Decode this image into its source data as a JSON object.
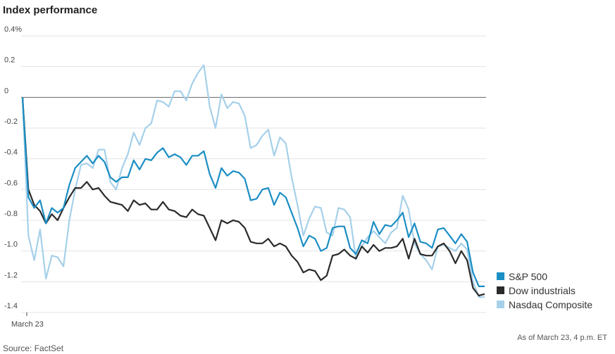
{
  "chart_data": {
    "type": "line",
    "title": "Index performance",
    "note": "As of March 23, 4 p.m. ET",
    "source": "Source: FactSet",
    "categories": [
      "March 23",
      null,
      null,
      null,
      null,
      null,
      null,
      null,
      null,
      null,
      null,
      null,
      null,
      null,
      null,
      null,
      null,
      null,
      null,
      null,
      null,
      null,
      null,
      null,
      null,
      null,
      null,
      null,
      null,
      null,
      null,
      null,
      null,
      null,
      null,
      null,
      null,
      null,
      null,
      null,
      null,
      null,
      null,
      null,
      null,
      null,
      null,
      null,
      null,
      null,
      null,
      null,
      null,
      null,
      null,
      null,
      null,
      null,
      null,
      null,
      null,
      null,
      null,
      null,
      null,
      null,
      null,
      null,
      null,
      null,
      null,
      null,
      null,
      null,
      null,
      null,
      null,
      null,
      null,
      null
    ],
    "ylim": [
      -1.4,
      0.4
    ],
    "yticks": [
      {
        "value": 0.4,
        "label": "0.4%"
      },
      0.2,
      0,
      -0.2,
      -0.4,
      -0.6,
      -0.8,
      {
        "value": -1,
        "label": "-1.0"
      },
      -1.2,
      -1.4
    ],
    "grid": true,
    "legend": "lower right",
    "series": [
      {
        "name": "S&P 500",
        "color": "#1b8ec4",
        "values": [
          0,
          -0.65,
          -0.72,
          -0.67,
          -0.82,
          -0.72,
          -0.75,
          -0.72,
          -0.57,
          -0.46,
          -0.42,
          -0.38,
          -0.43,
          -0.38,
          -0.42,
          -0.52,
          -0.55,
          -0.52,
          -0.52,
          -0.41,
          -0.47,
          -0.4,
          -0.41,
          -0.36,
          -0.33,
          -0.39,
          -0.37,
          -0.39,
          -0.44,
          -0.38,
          -0.38,
          -0.35,
          -0.5,
          -0.59,
          -0.46,
          -0.51,
          -0.48,
          -0.49,
          -0.53,
          -0.67,
          -0.66,
          -0.6,
          -0.59,
          -0.7,
          -0.62,
          -0.65,
          -0.75,
          -0.85,
          -0.97,
          -0.9,
          -0.92,
          -1.0,
          -0.98,
          -0.85,
          -0.84,
          -0.84,
          -0.98,
          -1.02,
          -0.93,
          -0.95,
          -0.81,
          -0.89,
          -0.83,
          -0.84,
          -0.8,
          -0.75,
          -0.91,
          -0.82,
          -0.94,
          -0.95,
          -0.98,
          -0.86,
          -0.85,
          -0.9,
          -0.95,
          -0.89,
          -0.94,
          -1.14,
          -1.23,
          -1.23
        ]
      },
      {
        "name": "Dow industrials",
        "color": "#2b2b2b",
        "values": [
          0,
          -0.6,
          -0.7,
          -0.74,
          -0.82,
          -0.76,
          -0.8,
          -0.72,
          -0.65,
          -0.59,
          -0.59,
          -0.55,
          -0.6,
          -0.59,
          -0.64,
          -0.68,
          -0.69,
          -0.7,
          -0.74,
          -0.67,
          -0.7,
          -0.69,
          -0.73,
          -0.73,
          -0.68,
          -0.73,
          -0.74,
          -0.77,
          -0.78,
          -0.73,
          -0.76,
          -0.77,
          -0.85,
          -0.93,
          -0.8,
          -0.82,
          -0.8,
          -0.81,
          -0.85,
          -0.94,
          -0.95,
          -0.95,
          -0.92,
          -0.97,
          -0.95,
          -0.97,
          -1.03,
          -1.07,
          -1.14,
          -1.12,
          -1.13,
          -1.19,
          -1.16,
          -1.03,
          -1.02,
          -0.99,
          -1.03,
          -1.05,
          -0.97,
          -1.01,
          -0.96,
          -1.0,
          -0.98,
          -0.98,
          -0.97,
          -0.92,
          -1.05,
          -0.92,
          -1.02,
          -1.03,
          -1.03,
          -0.97,
          -0.95,
          -1.0,
          -1.08,
          -1.0,
          -1.06,
          -1.24,
          -1.29,
          -1.28
        ]
      },
      {
        "name": "Nasdaq Composite",
        "color": "#a6d0ea",
        "values": [
          0,
          -0.9,
          -1.06,
          -0.86,
          -1.18,
          -1.03,
          -1.04,
          -1.1,
          -0.8,
          -0.6,
          -0.44,
          -0.43,
          -0.46,
          -0.34,
          -0.34,
          -0.55,
          -0.6,
          -0.46,
          -0.37,
          -0.23,
          -0.31,
          -0.2,
          -0.17,
          -0.02,
          -0.03,
          -0.06,
          0.04,
          0.04,
          -0.02,
          0.09,
          0.16,
          0.21,
          -0.06,
          -0.2,
          0.02,
          -0.07,
          -0.03,
          -0.04,
          -0.12,
          -0.33,
          -0.31,
          -0.25,
          -0.21,
          -0.38,
          -0.26,
          -0.3,
          -0.52,
          -0.7,
          -0.9,
          -0.79,
          -0.71,
          -0.72,
          -0.88,
          -0.9,
          -0.72,
          -0.73,
          -0.78,
          -1.05,
          -0.97,
          -0.91,
          -0.87,
          -0.91,
          -0.95,
          -0.88,
          -0.85,
          -0.64,
          -0.73,
          -0.95,
          -1.02,
          -1.06,
          -1.12,
          -0.97,
          -0.96,
          -0.98,
          -1.0,
          -0.95,
          -0.99,
          -1.2,
          -1.3,
          -1.3
        ]
      }
    ]
  }
}
